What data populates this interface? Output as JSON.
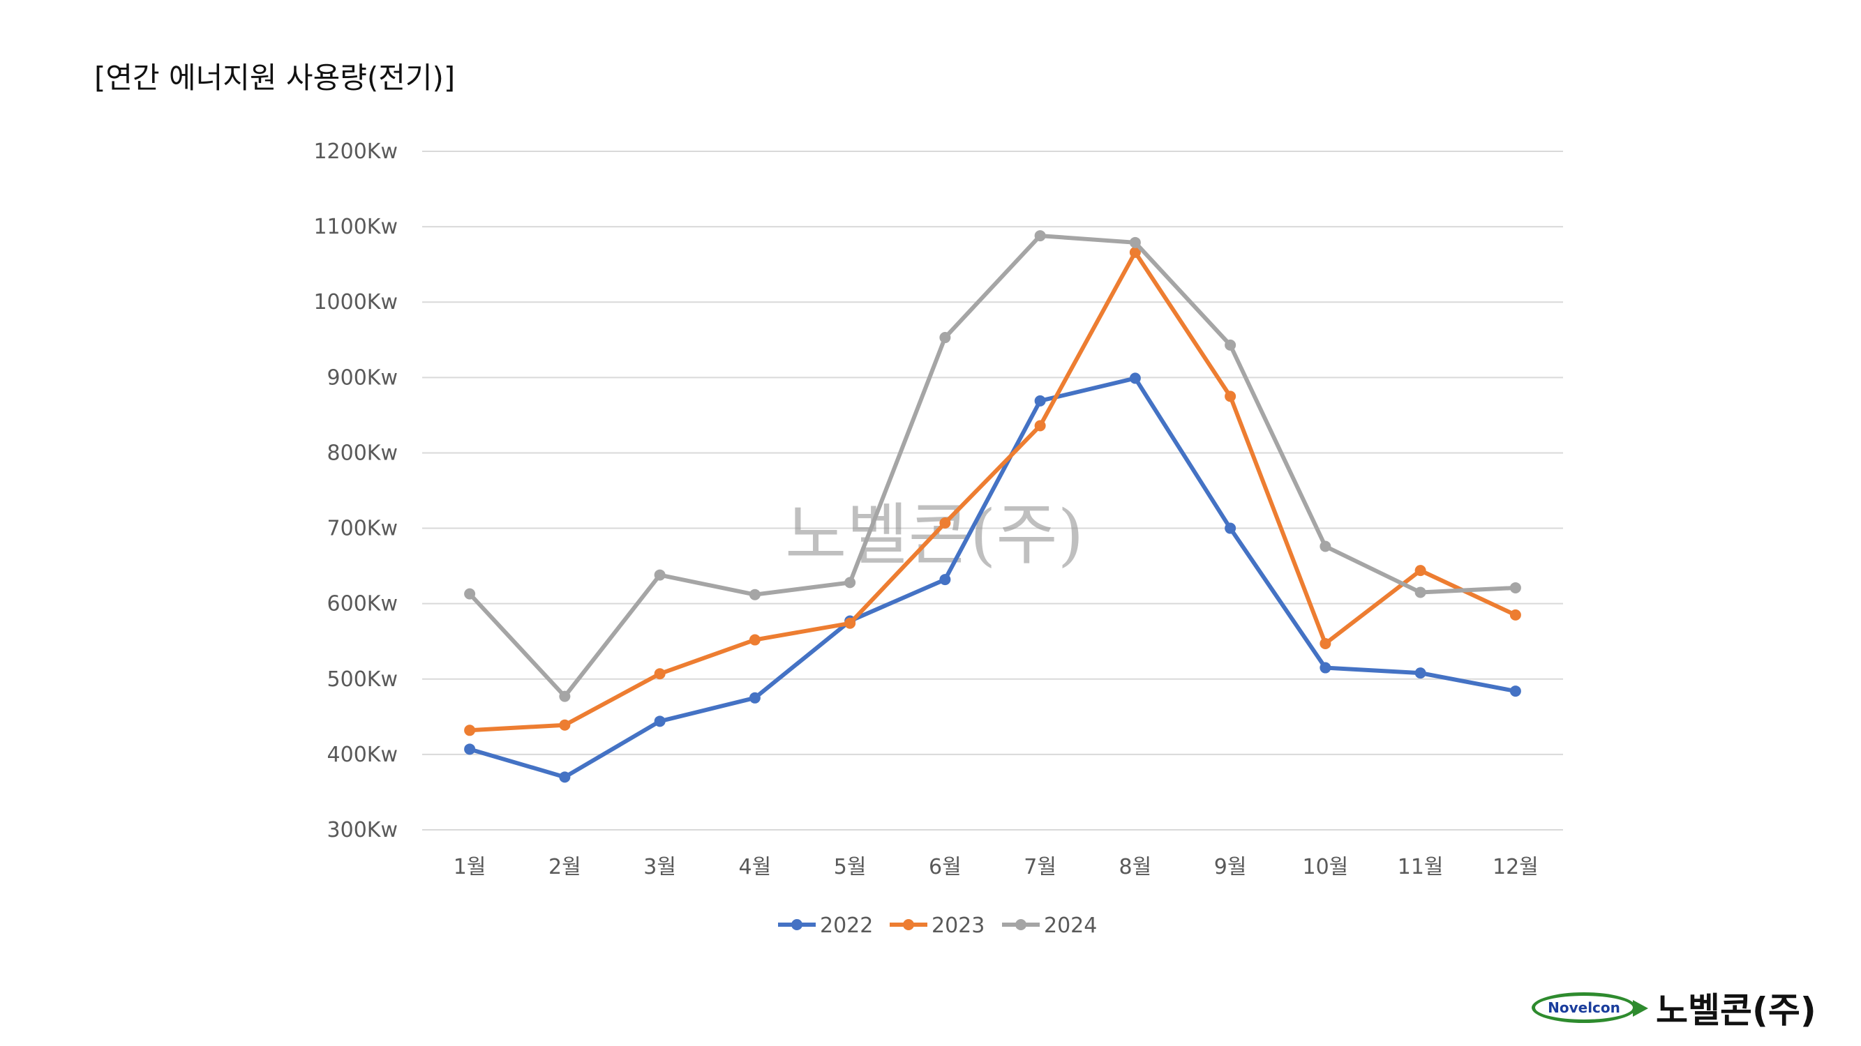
{
  "page": {
    "title": "[연간 에너지원 사용량(전기)]",
    "watermark": "노벨콘(주)",
    "logo_text": "Novelcon",
    "company_name": "노벨콘(주)"
  },
  "chart_data": {
    "type": "line",
    "title": "",
    "xlabel": "",
    "ylabel": "",
    "categories": [
      "1월",
      "2월",
      "3월",
      "4월",
      "5월",
      "6월",
      "7월",
      "8월",
      "9월",
      "10월",
      "11월",
      "12월"
    ],
    "ylim": [
      300,
      1200
    ],
    "y_ticks": [
      300,
      400,
      500,
      600,
      700,
      800,
      900,
      1000,
      1100,
      1200
    ],
    "y_tick_labels": [
      "300Kw",
      "400Kw",
      "500Kw",
      "600Kw",
      "700Kw",
      "800Kw",
      "900Kw",
      "1000Kw",
      "1100Kw",
      "1200Kw"
    ],
    "grid": true,
    "legend_position": "bottom",
    "series": [
      {
        "name": "2022",
        "color": "#4472c4",
        "values": [
          407,
          370,
          444,
          475,
          577,
          632,
          869,
          899,
          700,
          515,
          508,
          484
        ]
      },
      {
        "name": "2023",
        "color": "#ed7d31",
        "values": [
          432,
          439,
          507,
          552,
          574,
          707,
          836,
          1066,
          875,
          547,
          644,
          585
        ]
      },
      {
        "name": "2024",
        "color": "#a5a5a5",
        "values": [
          613,
          477,
          638,
          612,
          628,
          953,
          1088,
          1079,
          943,
          676,
          615,
          621
        ]
      }
    ]
  }
}
